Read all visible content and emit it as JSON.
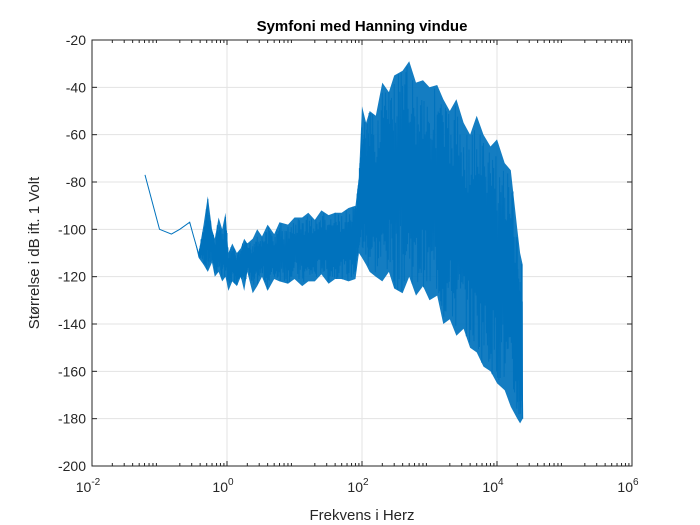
{
  "chart_data": {
    "type": "line",
    "title": "Symfoni med Hanning vindue",
    "xlabel": "Frekvens i Herz",
    "ylabel": "Størrelse i dB ift. 1 Volt",
    "x_scale": "log",
    "xlim": [
      0.01,
      1000000
    ],
    "ylim": [
      -200,
      -20
    ],
    "grid": true,
    "line_color": "#0072BD",
    "x_ticks": [
      {
        "base": "10",
        "exp": "-2",
        "value": 0.01
      },
      {
        "base": "10",
        "exp": "0",
        "value": 1
      },
      {
        "base": "10",
        "exp": "2",
        "value": 100
      },
      {
        "base": "10",
        "exp": "4",
        "value": 10000
      },
      {
        "base": "10",
        "exp": "6",
        "value": 1000000
      }
    ],
    "y_ticks": [
      "-20",
      "-40",
      "-60",
      "-80",
      "-100",
      "-120",
      "-140",
      "-160",
      "-180",
      "-200"
    ],
    "y_tick_values": [
      -20,
      -40,
      -60,
      -80,
      -100,
      -120,
      -140,
      -160,
      -180,
      -200
    ],
    "series": [
      {
        "x": [
          0.061,
          0.1,
          0.15,
          0.2,
          0.28,
          0.32,
          0.38,
          0.45,
          0.52,
          0.6,
          0.66,
          0.75,
          0.85,
          0.95,
          1.05,
          1.2,
          1.4,
          1.6,
          1.8,
          2,
          2.4,
          2.8,
          3.3,
          4,
          5,
          6,
          8,
          10,
          13,
          16,
          20,
          25,
          32,
          40,
          50,
          63,
          80,
          90,
          100,
          115,
          130,
          160,
          200,
          250,
          300,
          400,
          500,
          630,
          800,
          1000,
          1300,
          1600,
          2000,
          2500,
          3200,
          4000,
          5000,
          6300,
          8000,
          10000,
          13000,
          16000,
          20000,
          22000,
          24000
        ],
        "upper": [
          -77,
          -100,
          -102,
          -100,
          -97,
          -103,
          -110,
          -98,
          -86,
          -100,
          -104,
          -95,
          -100,
          -93,
          -110,
          -106,
          -110,
          -108,
          -104,
          -106,
          -104,
          -100,
          -103,
          -98,
          -102,
          -97,
          -98,
          -95,
          -95,
          -93,
          -96,
          -92,
          -94,
          -93,
          -93,
          -91,
          -90,
          -78,
          -48,
          -55,
          -50,
          -52,
          -38,
          -42,
          -35,
          -33,
          -29,
          -38,
          -37,
          -40,
          -39,
          -45,
          -50,
          -45,
          -55,
          -60,
          -52,
          -60,
          -65,
          -62,
          -72,
          -75,
          -100,
          -110,
          -115
        ],
        "lower": [
          -77,
          -100,
          -102,
          -100,
          -97,
          -103,
          -112,
          -115,
          -118,
          -114,
          -120,
          -118,
          -122,
          -120,
          -126,
          -122,
          -124,
          -120,
          -126,
          -118,
          -127,
          -124,
          -120,
          -126,
          -121,
          -122,
          -123,
          -121,
          -124,
          -122,
          -122,
          -119,
          -123,
          -121,
          -121,
          -122,
          -121,
          -110,
          -112,
          -115,
          -118,
          -120,
          -122,
          -118,
          -125,
          -127,
          -120,
          -128,
          -124,
          -130,
          -128,
          -140,
          -138,
          -145,
          -142,
          -150,
          -152,
          -158,
          -160,
          -165,
          -168,
          -175,
          -180,
          -182,
          -180
        ]
      }
    ]
  }
}
